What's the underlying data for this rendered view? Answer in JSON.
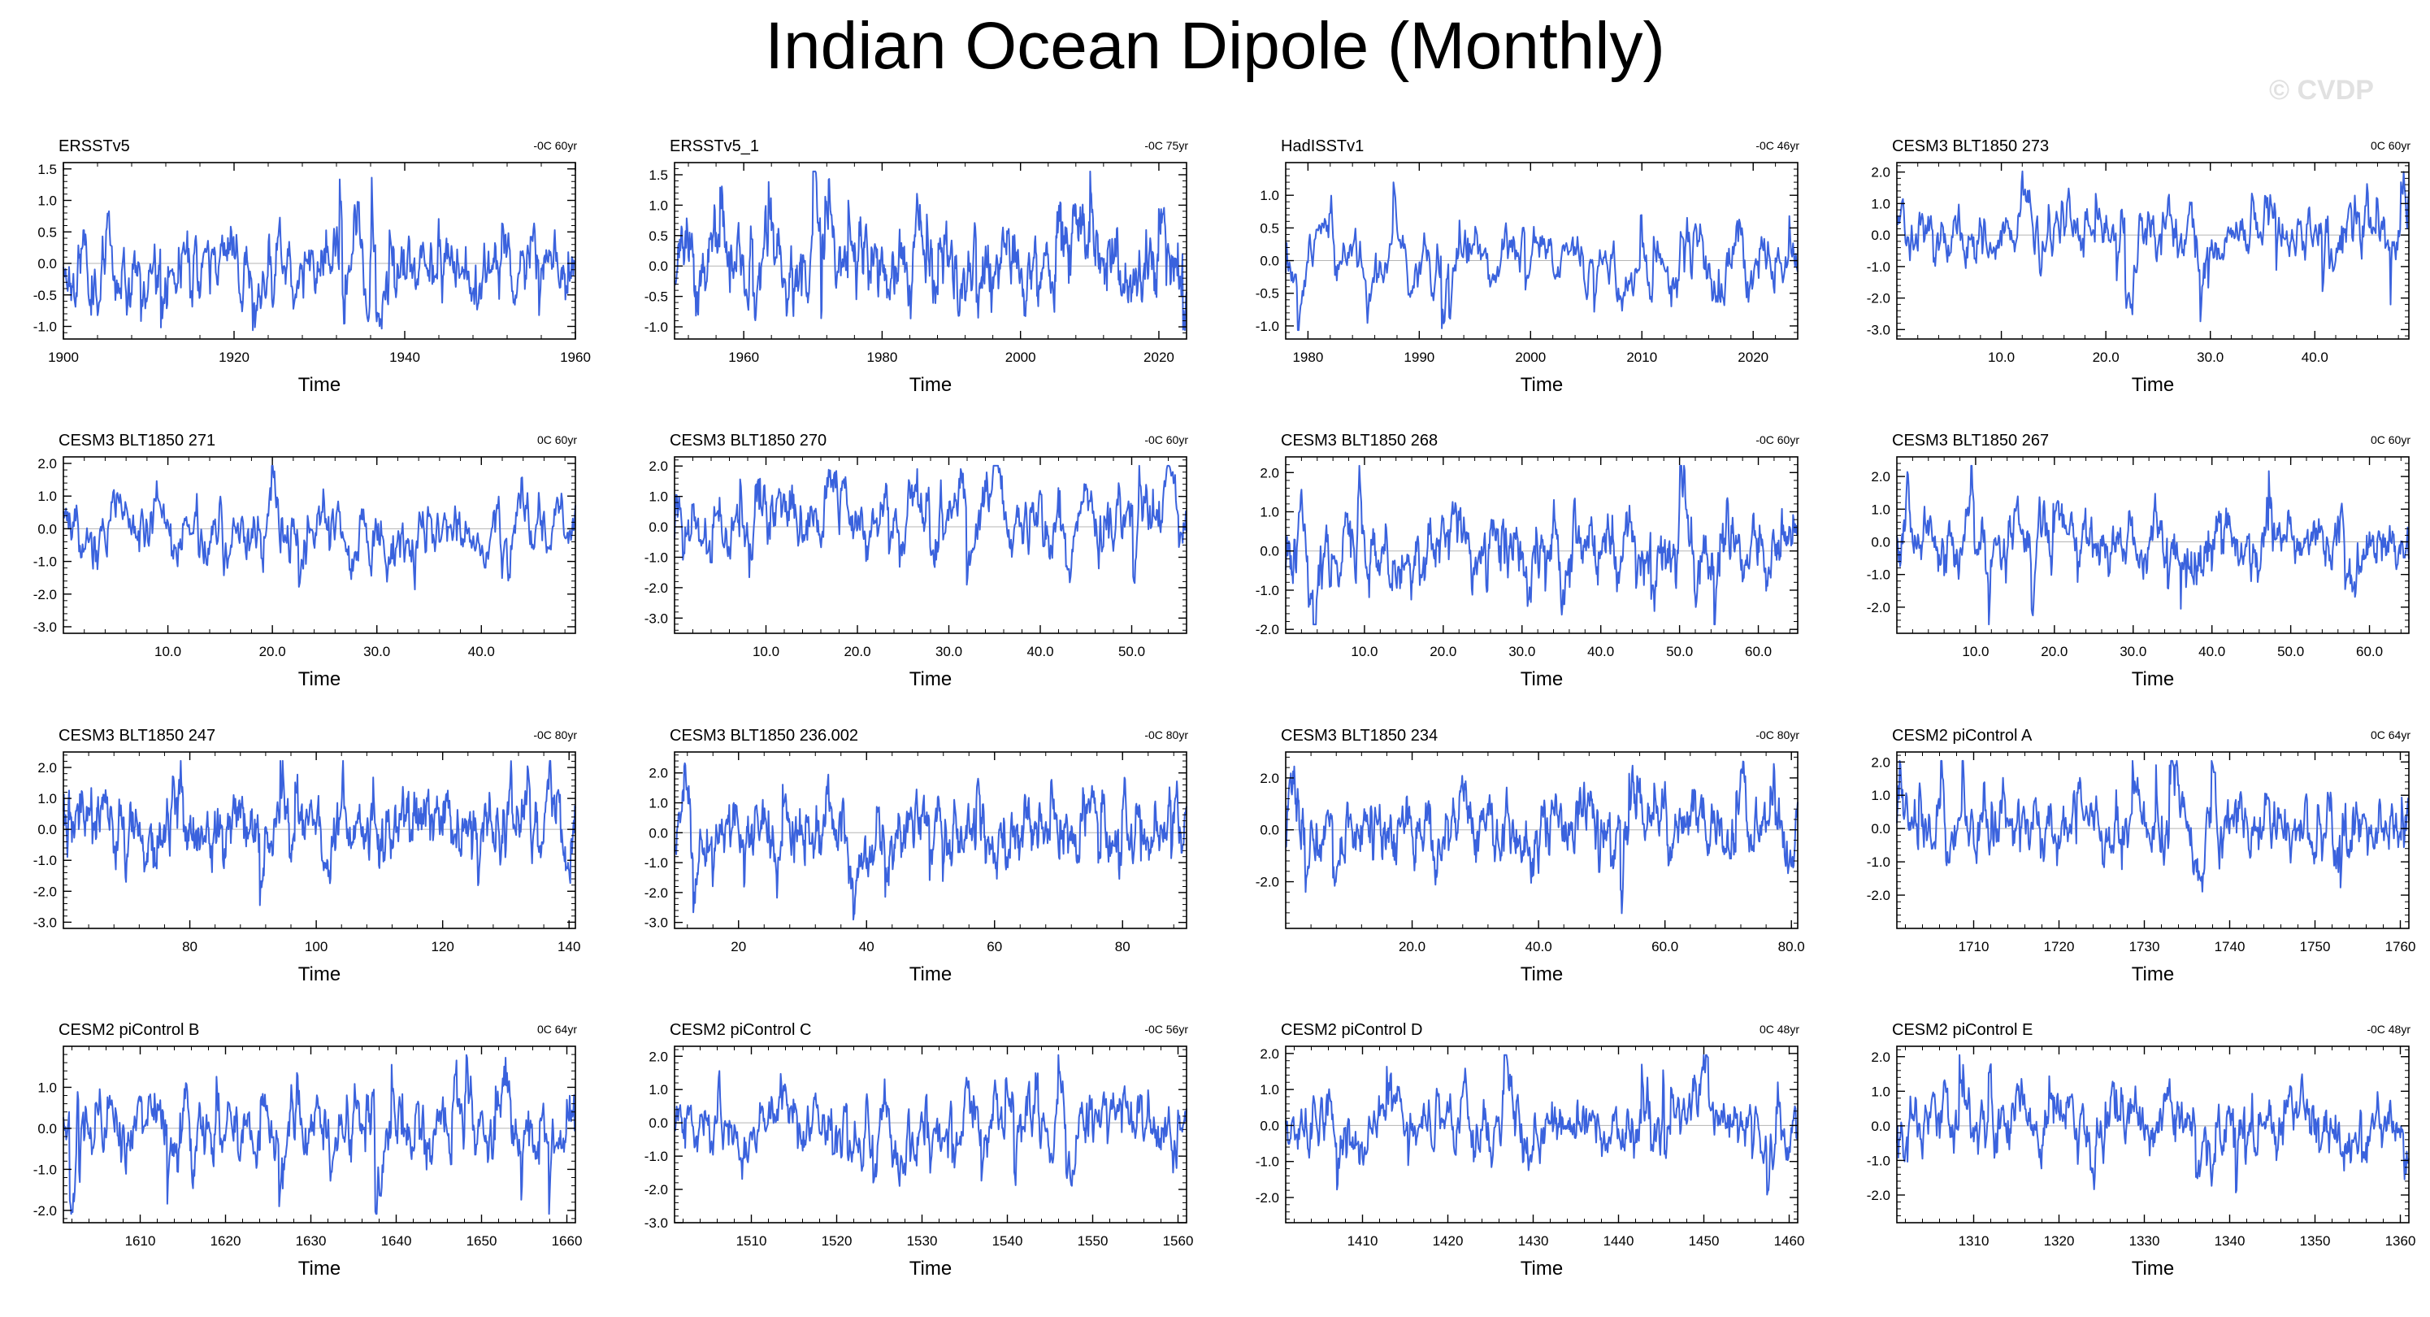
{
  "figure": {
    "title": "Indian Ocean Dipole (Monthly)",
    "watermark": "© CVDP",
    "series_color": "#3a62dd",
    "axis_color": "#000000",
    "zero_line_color": "#b5b5b5"
  },
  "chart_data": [
    {
      "type": "line",
      "title": "ERSSTv5",
      "annotation": "-0C 60yr",
      "xlabel": "Time",
      "xlim": [
        1900,
        1960
      ],
      "ylim": [
        -1.2,
        1.6
      ],
      "xticks": [
        1900,
        1920,
        1940,
        1960
      ],
      "xticklabels": [
        "1900",
        "1920",
        "1940",
        "1960"
      ],
      "yticks": [
        -1.0,
        -0.5,
        0.0,
        0.5,
        1.0,
        1.5
      ],
      "yticklabels": [
        "-1.0",
        "-0.5",
        "0.0",
        "0.5",
        "1.0",
        "1.5"
      ],
      "seed": 11,
      "series_amp": 0.35
    },
    {
      "type": "line",
      "title": "ERSSTv5_1",
      "annotation": "-0C 75yr",
      "xlabel": "Time",
      "xlim": [
        1950,
        2024
      ],
      "ylim": [
        -1.2,
        1.7
      ],
      "xticks": [
        1960,
        1980,
        2000,
        2020
      ],
      "xticklabels": [
        "1960",
        "1980",
        "2000",
        "2020"
      ],
      "yticks": [
        -1.0,
        -0.5,
        0.0,
        0.5,
        1.0,
        1.5
      ],
      "yticklabels": [
        "-1.0",
        "-0.5",
        "0.0",
        "0.5",
        "1.0",
        "1.5"
      ],
      "seed": 23,
      "series_amp": 0.38
    },
    {
      "type": "line",
      "title": "HadISSTv1",
      "annotation": "-0C 46yr",
      "xlabel": "Time",
      "xlim": [
        1978,
        2024
      ],
      "ylim": [
        -1.2,
        1.5
      ],
      "xticks": [
        1980,
        1990,
        2000,
        2010,
        2020
      ],
      "xticklabels": [
        "1980",
        "1990",
        "2000",
        "2010",
        "2020"
      ],
      "yticks": [
        -1.0,
        -0.5,
        0.0,
        0.5,
        1.0
      ],
      "yticklabels": [
        "-1.0",
        "-0.5",
        "0.0",
        "0.5",
        "1.0"
      ],
      "seed": 37,
      "series_amp": 0.3
    },
    {
      "type": "line",
      "title": "CESM3 BLT1850 273",
      "annotation": "0C 60yr",
      "xlabel": "Time",
      "xlim": [
        0,
        49
      ],
      "ylim": [
        -3.3,
        2.3
      ],
      "xticks": [
        10,
        20,
        30,
        40
      ],
      "xticklabels": [
        "10.0",
        "20.0",
        "30.0",
        "40.0"
      ],
      "yticks": [
        -3,
        -2,
        -1,
        0,
        1,
        2
      ],
      "yticklabels": [
        "-3.0",
        "-2.0",
        "-1.0",
        "0.0",
        "1.0",
        "2.0"
      ],
      "seed": 41,
      "series_amp": 0.65
    },
    {
      "type": "line",
      "title": "CESM3 BLT1850 271",
      "annotation": "0C 60yr",
      "xlabel": "Time",
      "xlim": [
        0,
        49
      ],
      "ylim": [
        -3.2,
        2.2
      ],
      "xticks": [
        10,
        20,
        30,
        40
      ],
      "xticklabels": [
        "10.0",
        "20.0",
        "30.0",
        "40.0"
      ],
      "yticks": [
        -3,
        -2,
        -1,
        0,
        1,
        2
      ],
      "yticklabels": [
        "-3.0",
        "-2.0",
        "-1.0",
        "0.0",
        "1.0",
        "2.0"
      ],
      "seed": 53,
      "series_amp": 0.65
    },
    {
      "type": "line",
      "title": "CESM3 BLT1850 270",
      "annotation": "-0C 60yr",
      "xlabel": "Time",
      "xlim": [
        0,
        56
      ],
      "ylim": [
        -3.5,
        2.3
      ],
      "xticks": [
        10,
        20,
        30,
        40,
        50
      ],
      "xticklabels": [
        "10.0",
        "20.0",
        "30.0",
        "40.0",
        "50.0"
      ],
      "yticks": [
        -3,
        -2,
        -1,
        0,
        1,
        2
      ],
      "yticklabels": [
        "-3.0",
        "-2.0",
        "-1.0",
        "0.0",
        "1.0",
        "2.0"
      ],
      "seed": 67,
      "series_amp": 0.7
    },
    {
      "type": "line",
      "title": "CESM3 BLT1850 268",
      "annotation": "-0C 60yr",
      "xlabel": "Time",
      "xlim": [
        0,
        65
      ],
      "ylim": [
        -2.1,
        2.4
      ],
      "xticks": [
        10,
        20,
        30,
        40,
        50,
        60
      ],
      "xticklabels": [
        "10.0",
        "20.0",
        "30.0",
        "40.0",
        "50.0",
        "60.0"
      ],
      "yticks": [
        -2,
        -1,
        0,
        1,
        2
      ],
      "yticklabels": [
        "-2.0",
        "-1.0",
        "0.0",
        "1.0",
        "2.0"
      ],
      "seed": 79,
      "series_amp": 0.55
    },
    {
      "type": "line",
      "title": "CESM3 BLT1850 267",
      "annotation": "0C 60yr",
      "xlabel": "Time",
      "xlim": [
        0,
        65
      ],
      "ylim": [
        -2.8,
        2.6
      ],
      "xticks": [
        10,
        20,
        30,
        40,
        50,
        60
      ],
      "xticklabels": [
        "10.0",
        "20.0",
        "30.0",
        "40.0",
        "50.0",
        "60.0"
      ],
      "yticks": [
        -2,
        -1,
        0,
        1,
        2
      ],
      "yticklabels": [
        "-2.0",
        "-1.0",
        "0.0",
        "1.0",
        "2.0"
      ],
      "seed": 83,
      "series_amp": 0.55
    },
    {
      "type": "line",
      "title": "CESM3 BLT1850 247",
      "annotation": "-0C 80yr",
      "xlabel": "Time",
      "xlim": [
        60,
        141
      ],
      "ylim": [
        -3.2,
        2.5
      ],
      "xticks": [
        80,
        100,
        120,
        140
      ],
      "xticklabels": [
        "80",
        "100",
        "120",
        "140"
      ],
      "yticks": [
        -3,
        -2,
        -1,
        0,
        1,
        2
      ],
      "yticklabels": [
        "-3.0",
        "-2.0",
        "-1.0",
        "0.0",
        "1.0",
        "2.0"
      ],
      "seed": 97,
      "series_amp": 0.7
    },
    {
      "type": "line",
      "title": "CESM3 BLT1850 236.002",
      "annotation": "-0C 80yr",
      "xlabel": "Time",
      "xlim": [
        10,
        90
      ],
      "ylim": [
        -3.2,
        2.7
      ],
      "xticks": [
        20,
        40,
        60,
        80
      ],
      "xticklabels": [
        "20",
        "40",
        "60",
        "80"
      ],
      "yticks": [
        -3,
        -2,
        -1,
        0,
        1,
        2
      ],
      "yticklabels": [
        "-3.0",
        "-2.0",
        "-1.0",
        "0.0",
        "1.0",
        "2.0"
      ],
      "seed": 101,
      "series_amp": 0.65
    },
    {
      "type": "line",
      "title": "CESM3 BLT1850 234",
      "annotation": "-0C 80yr",
      "xlabel": "Time",
      "xlim": [
        0,
        81
      ],
      "ylim": [
        -3.8,
        3.0
      ],
      "xticks": [
        20,
        40,
        60,
        80
      ],
      "xticklabels": [
        "20.0",
        "40.0",
        "60.0",
        "80.0"
      ],
      "yticks": [
        -2,
        0,
        2
      ],
      "yticklabels": [
        "-2.0",
        "0.0",
        "2.0"
      ],
      "seed": 113,
      "series_amp": 0.75
    },
    {
      "type": "line",
      "title": "CESM2 piControl A",
      "annotation": "0C 64yr",
      "xlabel": "Time",
      "xlim": [
        1701,
        1761
      ],
      "ylim": [
        -3.0,
        2.3
      ],
      "xticks": [
        1710,
        1720,
        1730,
        1740,
        1750,
        1760
      ],
      "xticklabels": [
        "1710",
        "1720",
        "1730",
        "1740",
        "1750",
        "1760"
      ],
      "yticks": [
        -2,
        -1,
        0,
        1,
        2
      ],
      "yticklabels": [
        "-2.0",
        "-1.0",
        "0.0",
        "1.0",
        "2.0"
      ],
      "seed": 127,
      "series_amp": 0.6
    },
    {
      "type": "line",
      "title": "CESM2 piControl B",
      "annotation": "0C 64yr",
      "xlabel": "Time",
      "xlim": [
        1601,
        1661
      ],
      "ylim": [
        -2.3,
        2.0
      ],
      "xticks": [
        1610,
        1620,
        1630,
        1640,
        1650,
        1660
      ],
      "xticklabels": [
        "1610",
        "1620",
        "1630",
        "1640",
        "1650",
        "1660"
      ],
      "yticks": [
        -2,
        -1,
        0,
        1
      ],
      "yticklabels": [
        "-2.0",
        "-1.0",
        "0.0",
        "1.0"
      ],
      "seed": 131,
      "series_amp": 0.55
    },
    {
      "type": "line",
      "title": "CESM2 piControl C",
      "annotation": "-0C 56yr",
      "xlabel": "Time",
      "xlim": [
        1501,
        1561
      ],
      "ylim": [
        -3.0,
        2.3
      ],
      "xticks": [
        1510,
        1520,
        1530,
        1540,
        1550,
        1560
      ],
      "xticklabels": [
        "1510",
        "1520",
        "1530",
        "1540",
        "1550",
        "1560"
      ],
      "yticks": [
        -3,
        -2,
        -1,
        0,
        1,
        2
      ],
      "yticklabels": [
        "-3.0",
        "-2.0",
        "-1.0",
        "0.0",
        "1.0",
        "2.0"
      ],
      "seed": 137,
      "series_amp": 0.6
    },
    {
      "type": "line",
      "title": "CESM2 piControl D",
      "annotation": "0C 48yr",
      "xlabel": "Time",
      "xlim": [
        1401,
        1461
      ],
      "ylim": [
        -2.7,
        2.2
      ],
      "xticks": [
        1410,
        1420,
        1430,
        1440,
        1450,
        1460
      ],
      "xticklabels": [
        "1410",
        "1420",
        "1430",
        "1440",
        "1450",
        "1460"
      ],
      "yticks": [
        -2,
        -1,
        0,
        1,
        2
      ],
      "yticklabels": [
        "-2.0",
        "-1.0",
        "0.0",
        "1.0",
        "2.0"
      ],
      "seed": 149,
      "series_amp": 0.55
    },
    {
      "type": "line",
      "title": "CESM2 piControl E",
      "annotation": "-0C 48yr",
      "xlabel": "Time",
      "xlim": [
        1301,
        1361
      ],
      "ylim": [
        -2.8,
        2.3
      ],
      "xticks": [
        1310,
        1320,
        1330,
        1340,
        1350,
        1360
      ],
      "xticklabels": [
        "1310",
        "1320",
        "1330",
        "1340",
        "1350",
        "1360"
      ],
      "yticks": [
        -2,
        -1,
        0,
        1,
        2
      ],
      "yticklabels": [
        "-2.0",
        "-1.0",
        "0.0",
        "1.0",
        "2.0"
      ],
      "seed": 157,
      "series_amp": 0.55
    }
  ]
}
